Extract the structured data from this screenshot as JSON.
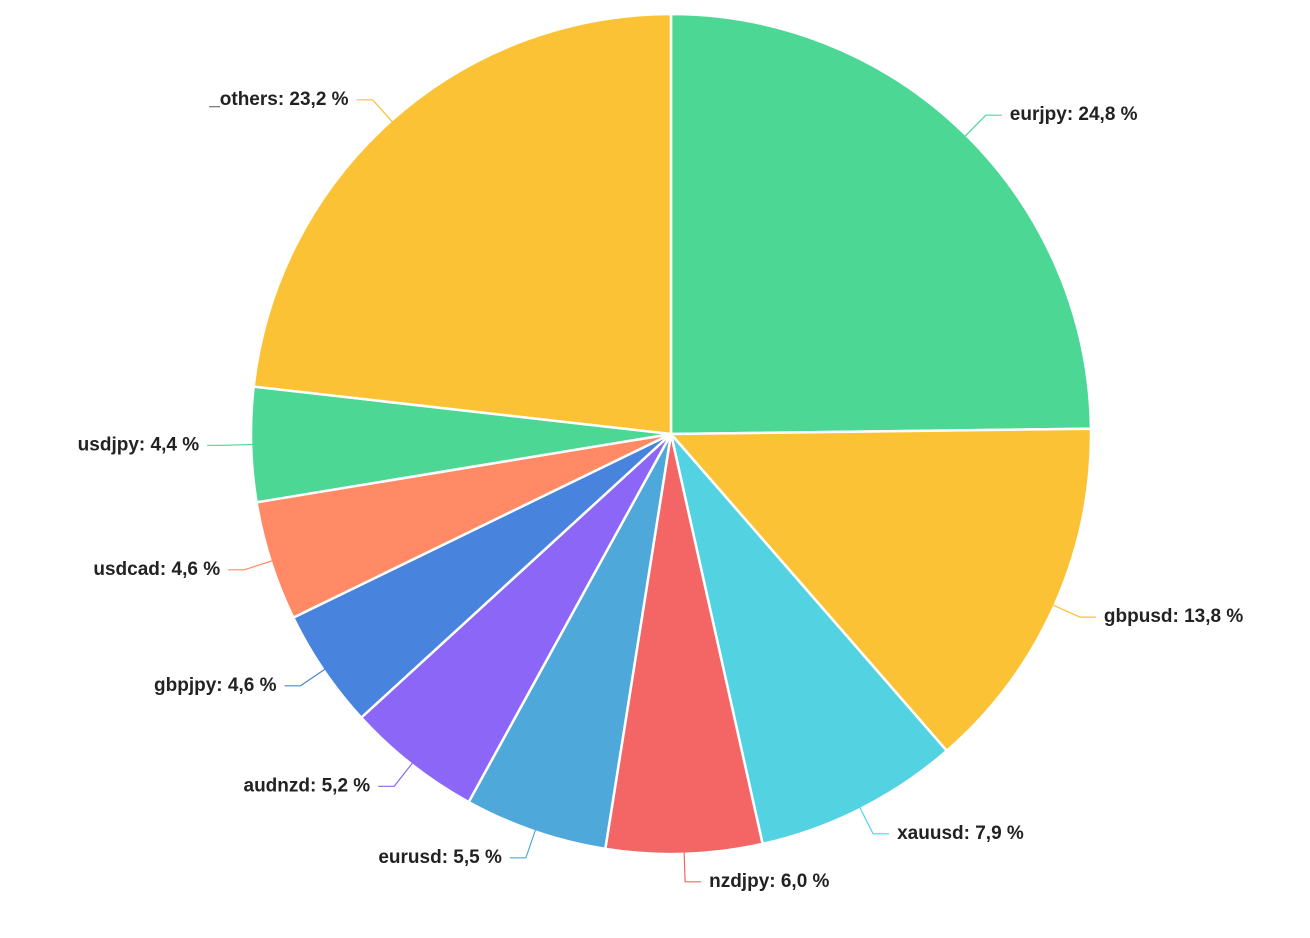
{
  "chart_data": {
    "type": "pie",
    "slices": [
      {
        "name": "eurjpy",
        "value": 24.8,
        "label": "eurjpy: 24,8 %",
        "color": "#4cd795"
      },
      {
        "name": "gbpusd",
        "value": 13.8,
        "label": "gbpusd: 13,8 %",
        "color": "#fbc235"
      },
      {
        "name": "xauusd",
        "value": 7.9,
        "label": "xauusd: 7,9 %",
        "color": "#53d3e2"
      },
      {
        "name": "nzdjpy",
        "value": 6.0,
        "label": "nzdjpy: 6,0 %",
        "color": "#f46666"
      },
      {
        "name": "eurusd",
        "value": 5.5,
        "label": "eurusd: 5,5 %",
        "color": "#4fa8da"
      },
      {
        "name": "audnzd",
        "value": 5.2,
        "label": "audnzd: 5,2 %",
        "color": "#8b66f7"
      },
      {
        "name": "gbpjpy",
        "value": 4.6,
        "label": "gbpjpy: 4,6 %",
        "color": "#4884de"
      },
      {
        "name": "usdcad",
        "value": 4.6,
        "label": "usdcad: 4,6 %",
        "color": "#ff8a65"
      },
      {
        "name": "usdjpy",
        "value": 4.4,
        "label": "usdjpy: 4,4 %",
        "color": "#4cd795"
      },
      {
        "name": "_others",
        "value": 23.2,
        "label": "_others: 23,2 %",
        "color": "#fbc235"
      }
    ],
    "start_angle": "12 o'clock",
    "direction": "clockwise",
    "legend": "none",
    "labels": "outside with leader lines"
  }
}
